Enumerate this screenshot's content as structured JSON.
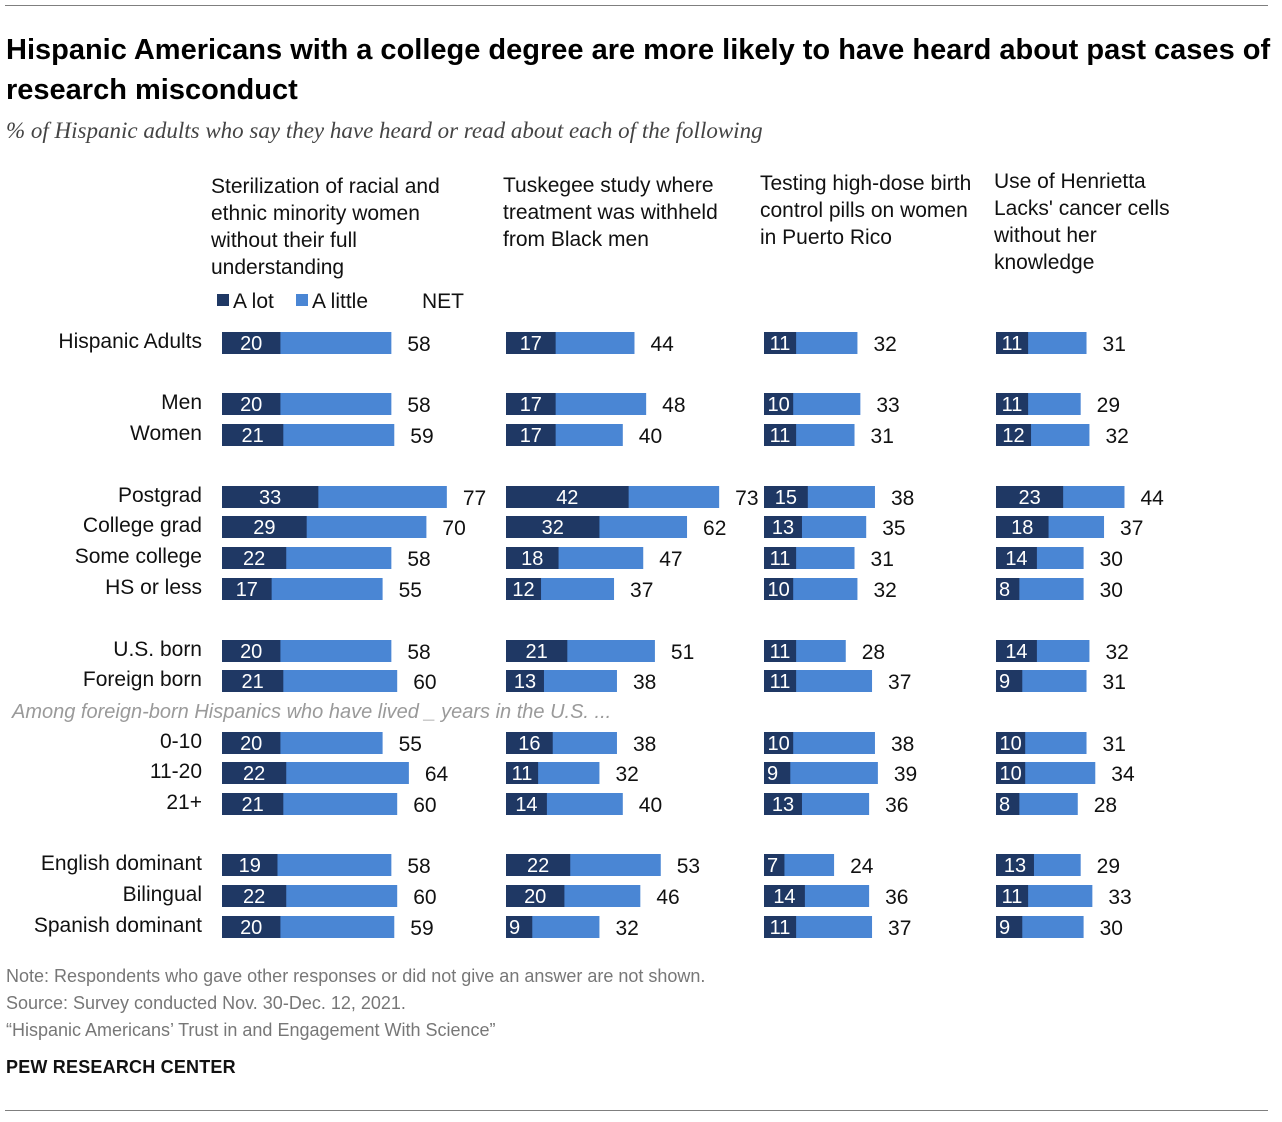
{
  "header": {
    "title": "Hispanic Americans with a college degree are more likely to have heard about past cases of research misconduct",
    "subtitle": "% of Hispanic adults who say they have heard or read about each of the following"
  },
  "legend": {
    "a_lot": "A lot",
    "a_little": "A little",
    "net": "NET"
  },
  "colors": {
    "a_lot": "#1f3864",
    "a_little": "#4a86d4"
  },
  "subgroup_note": "Among foreign-born Hispanics who have lived _ years in the U.S. ...",
  "footer": {
    "note": "Note: Respondents who gave other responses or did not give an answer are not shown.",
    "source": "Source: Survey conducted Nov. 30-Dec. 12, 2021.",
    "report": "“Hispanic Americans’ Trust in and Engagement With Science”",
    "brand": "PEW RESEARCH CENTER"
  },
  "chart_data": {
    "type": "bar",
    "orientation": "horizontal",
    "stacked": true,
    "categories": [
      "Hispanic Adults",
      "Men",
      "Women",
      "Postgrad",
      "College grad",
      "Some college",
      "HS or less",
      "U.S. born",
      "Foreign born",
      "0-10",
      "11-20",
      "21+",
      "English dominant",
      "Bilingual",
      "Spanish dominant"
    ],
    "panels": [
      {
        "title": "Sterilization of racial and ethnic minority women without their full understanding",
        "a_lot": [
          20,
          20,
          21,
          33,
          29,
          22,
          17,
          20,
          21,
          20,
          22,
          21,
          19,
          22,
          20
        ],
        "net": [
          58,
          58,
          59,
          77,
          70,
          58,
          55,
          58,
          60,
          55,
          64,
          60,
          58,
          60,
          59
        ]
      },
      {
        "title": "Tuskegee study where treatment was withheld from Black men",
        "a_lot": [
          17,
          17,
          17,
          42,
          32,
          18,
          12,
          21,
          13,
          16,
          11,
          14,
          22,
          20,
          9
        ],
        "net": [
          44,
          48,
          40,
          73,
          62,
          47,
          37,
          51,
          38,
          38,
          32,
          40,
          53,
          46,
          32
        ]
      },
      {
        "title": "Testing high-dose birth control pills on women in Puerto Rico",
        "a_lot": [
          11,
          10,
          11,
          15,
          13,
          11,
          10,
          11,
          11,
          10,
          9,
          13,
          7,
          14,
          11
        ],
        "net": [
          32,
          33,
          31,
          38,
          35,
          31,
          32,
          28,
          37,
          38,
          39,
          36,
          24,
          36,
          37
        ]
      },
      {
        "title": "Use of Henrietta Lacks' cancer cells without her knowledge",
        "a_lot": [
          11,
          11,
          12,
          23,
          18,
          14,
          8,
          14,
          9,
          10,
          10,
          8,
          13,
          11,
          9
        ],
        "net": [
          31,
          29,
          32,
          44,
          37,
          30,
          30,
          32,
          31,
          31,
          34,
          28,
          29,
          33,
          30
        ]
      }
    ]
  }
}
